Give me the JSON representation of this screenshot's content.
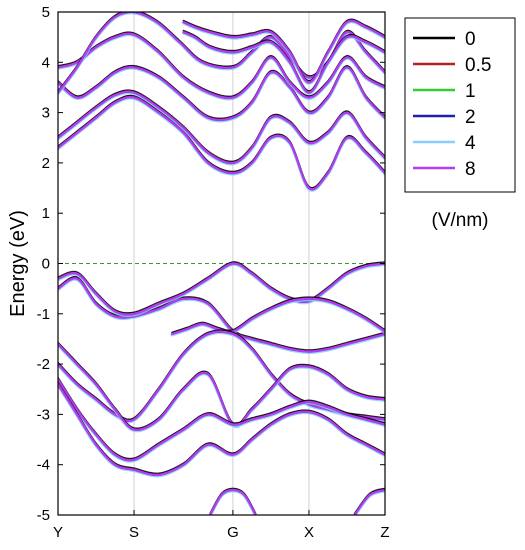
{
  "chart_data": {
    "type": "line",
    "title": "",
    "xlabel": "",
    "ylabel": "Energy (eV)",
    "ylim": [
      -5,
      5
    ],
    "yticks": [
      -5,
      -4,
      -3,
      -2,
      -1,
      0,
      1,
      2,
      3,
      4,
      5
    ],
    "k_points": [
      "Y",
      "S",
      "G",
      "X",
      "Z"
    ],
    "k_positions": [
      0,
      1,
      2.3,
      3.3,
      4.3
    ],
    "fermi_level": 0,
    "legend": {
      "placement": "outside-right",
      "unit": "(V/nm)",
      "entries": [
        {
          "label": "0",
          "color": "#000000"
        },
        {
          "label": "0.5",
          "color": "#b22222"
        },
        {
          "label": "1",
          "color": "#32cd32"
        },
        {
          "label": "2",
          "color": "#1f1fb4"
        },
        {
          "label": "4",
          "color": "#87cefa"
        },
        {
          "label": "8",
          "color": "#b43cf0"
        }
      ]
    },
    "series": [
      {
        "x": [
          0,
          0.25,
          0.5,
          0.75,
          1,
          1.325,
          1.65,
          1.975,
          2.3,
          2.55,
          2.8,
          3.05,
          3.3,
          3.55,
          3.8,
          4.05,
          4.3
        ],
        "y": [
          -0.5,
          -0.3,
          -0.8,
          -1.05,
          -1.05,
          -0.9,
          -0.7,
          -0.8,
          -1.35,
          -1.5,
          -1.6,
          -1.7,
          -1.75,
          -1.7,
          -1.6,
          -1.5,
          -1.4
        ]
      },
      {
        "x": [
          0,
          0.25,
          0.5,
          0.75,
          1,
          1.325,
          1.65,
          1.975,
          2.3,
          2.55,
          2.8,
          3.05,
          3.3,
          3.55,
          3.8,
          4.05,
          4.3
        ],
        "y": [
          -0.3,
          -0.2,
          -0.6,
          -0.95,
          -1.0,
          -0.8,
          -0.6,
          -0.3,
          0,
          -0.2,
          -0.5,
          -0.7,
          -0.75,
          -0.5,
          -0.2,
          -0.05,
          0
        ]
      },
      {
        "x": [
          1.5,
          1.7,
          1.9,
          2.1,
          2.3,
          2.55,
          2.8,
          3.05,
          3.3,
          3.55,
          3.8,
          4.05,
          4.3
        ],
        "y": [
          -1.4,
          -1.3,
          -1.2,
          -1.3,
          -1.35,
          -1.1,
          -0.9,
          -0.75,
          -0.7,
          -0.75,
          -0.9,
          -1.1,
          -1.35
        ]
      },
      {
        "x": [
          0,
          0.25,
          0.5,
          0.75,
          1,
          1.325,
          1.65,
          1.975,
          2.3,
          2.55,
          2.8,
          3.05,
          3.3,
          3.55,
          3.8,
          4.05,
          4.3
        ],
        "y": [
          -2.0,
          -2.4,
          -2.7,
          -3.0,
          -3.1,
          -2.5,
          -1.8,
          -1.4,
          -1.4,
          -1.7,
          -2.2,
          -2.6,
          -2.8,
          -2.9,
          -3.0,
          -3.05,
          -3.1
        ]
      },
      {
        "x": [
          0,
          0.25,
          0.5,
          0.75,
          1,
          1.325,
          1.65,
          1.975,
          2.3,
          2.55,
          2.8,
          3.05,
          3.3,
          3.55,
          3.8,
          4.05,
          4.3
        ],
        "y": [
          -1.6,
          -2.0,
          -2.4,
          -2.9,
          -3.3,
          -3.1,
          -2.5,
          -2.2,
          -3.2,
          -2.9,
          -2.5,
          -2.1,
          -2.05,
          -2.2,
          -2.5,
          -2.65,
          -2.7
        ]
      },
      {
        "x": [
          0,
          0.25,
          0.5,
          0.75,
          1,
          1.325,
          1.65,
          1.975,
          2.3,
          2.55,
          2.8,
          3.05,
          3.3,
          3.55,
          3.8,
          4.05,
          4.3
        ],
        "y": [
          -2.3,
          -2.9,
          -3.4,
          -3.8,
          -3.9,
          -3.6,
          -3.3,
          -3.0,
          -3.2,
          -3.1,
          -3.0,
          -2.85,
          -2.75,
          -2.85,
          -3.0,
          -3.1,
          -3.2
        ]
      },
      {
        "x": [
          0,
          0.25,
          0.5,
          0.75,
          1,
          1.325,
          1.65,
          1.975,
          2.3,
          2.55,
          2.8,
          3.05,
          3.3,
          3.55,
          3.8,
          4.05,
          4.3
        ],
        "y": [
          -2.4,
          -3.0,
          -3.6,
          -4.0,
          -4.1,
          -4.2,
          -4.0,
          -3.6,
          -3.8,
          -3.5,
          -3.2,
          -3.0,
          -2.95,
          -3.1,
          -3.4,
          -3.6,
          -3.8
        ]
      },
      {
        "x": [
          2.0,
          2.15,
          2.3,
          2.45,
          2.6
        ],
        "y": [
          -5.0,
          -4.6,
          -4.5,
          -4.6,
          -5.0
        ]
      },
      {
        "x": [
          3.9,
          4.1,
          4.3
        ],
        "y": [
          -5.0,
          -4.6,
          -4.5
        ]
      },
      {
        "x": [
          0,
          0.25,
          0.5,
          0.75,
          1,
          1.325,
          1.65,
          1.975,
          2.3,
          2.55,
          2.8,
          3.05,
          3.3,
          3.55,
          3.8,
          4.05,
          4.3
        ],
        "y": [
          2.3,
          2.6,
          2.9,
          3.2,
          3.3,
          3.0,
          2.6,
          2.0,
          1.8,
          2.0,
          2.5,
          2.4,
          1.5,
          1.8,
          2.5,
          2.2,
          1.8
        ]
      },
      {
        "x": [
          0,
          0.25,
          0.5,
          0.75,
          1,
          1.325,
          1.65,
          1.975,
          2.3,
          2.55,
          2.8,
          3.05,
          3.3,
          3.55,
          3.8,
          4.05,
          4.3
        ],
        "y": [
          2.5,
          2.8,
          3.1,
          3.35,
          3.4,
          3.1,
          2.7,
          2.2,
          2.0,
          2.3,
          2.9,
          2.8,
          2.4,
          2.6,
          3.0,
          2.5,
          2.1
        ]
      },
      {
        "x": [
          0,
          0.25,
          0.5,
          0.75,
          1,
          1.325,
          1.65,
          1.975,
          2.3,
          2.55,
          2.8,
          3.05,
          3.3,
          3.55,
          3.8,
          4.05,
          4.3
        ],
        "y": [
          3.6,
          3.3,
          3.5,
          3.8,
          3.9,
          3.7,
          3.3,
          2.9,
          2.9,
          3.2,
          3.8,
          3.5,
          3.0,
          3.3,
          3.9,
          3.3,
          2.9
        ]
      },
      {
        "x": [
          0,
          0.25,
          0.5,
          0.75,
          1,
          1.325,
          1.65,
          1.975,
          2.3,
          2.55,
          2.8,
          3.05,
          3.3,
          3.55,
          3.8,
          4.05,
          4.3
        ],
        "y": [
          3.9,
          4.0,
          4.3,
          4.5,
          4.55,
          4.2,
          3.7,
          3.4,
          3.3,
          3.6,
          4.1,
          3.6,
          3.3,
          3.6,
          4.1,
          3.7,
          3.5
        ]
      },
      {
        "x": [
          0,
          0.25,
          0.5,
          0.75,
          1,
          1.3,
          1.6,
          1.9,
          2.3,
          2.55,
          2.8,
          3.05,
          3.3,
          3.55,
          3.8,
          4.05,
          4.3
        ],
        "y": [
          3.4,
          3.9,
          4.5,
          4.9,
          5.0,
          4.8,
          4.4,
          4.0,
          3.9,
          4.2,
          4.5,
          4.1,
          3.7,
          4.0,
          4.6,
          4.2,
          3.8
        ]
      },
      {
        "x": [
          1.65,
          1.8,
          2.0,
          2.3,
          2.55,
          2.8,
          3.05,
          3.3,
          3.55,
          3.8,
          4.05,
          4.3
        ],
        "y": [
          4.6,
          4.5,
          4.3,
          4.2,
          4.3,
          4.4,
          4.0,
          3.4,
          4.0,
          4.5,
          4.4,
          4.2
        ]
      },
      {
        "x": [
          1.65,
          1.8,
          2.0,
          2.3,
          2.55,
          2.8,
          3.05,
          3.3,
          3.55,
          3.8,
          4.05,
          4.3
        ],
        "y": [
          4.8,
          4.7,
          4.6,
          4.5,
          4.55,
          4.6,
          4.2,
          3.6,
          4.2,
          4.8,
          4.7,
          4.5
        ]
      }
    ]
  }
}
